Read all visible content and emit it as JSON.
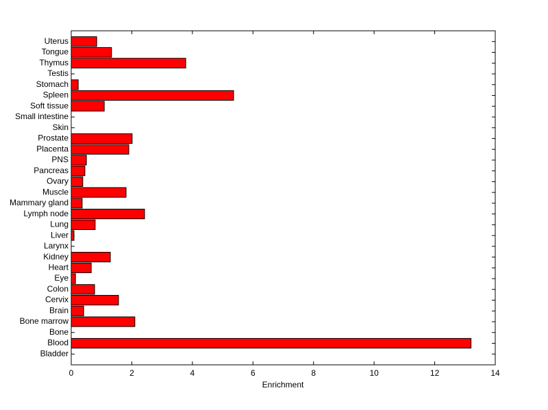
{
  "chart_data": {
    "type": "barh",
    "x_label": "Enrichment",
    "categories": [
      "Bladder",
      "Blood",
      "Bone",
      "Bone marrow",
      "Brain",
      "Cervix",
      "Colon",
      "Eye",
      "Heart",
      "Kidney",
      "Larynx",
      "Liver",
      "Lung",
      "Lymph node",
      "Mammary gland",
      "Muscle",
      "Ovary",
      "Pancreas",
      "PNS",
      "Placenta",
      "Prostate",
      "Skin",
      "Small intestine",
      "Soft tissue",
      "Spleen",
      "Stomach",
      "Testis",
      "Thymus",
      "Tongue",
      "Uterus"
    ],
    "values": [
      0,
      13.2,
      0,
      2.1,
      0.41,
      1.56,
      0.77,
      0.14,
      0.66,
      1.29,
      0,
      0.09,
      0.79,
      2.42,
      0.36,
      1.81,
      0.38,
      0.45,
      0.5,
      1.9,
      2.01,
      0,
      0,
      1.09,
      5.36,
      0.23,
      0,
      3.78,
      1.33,
      0.84
    ],
    "color": "#ff0000",
    "xlim": [
      0,
      14
    ],
    "xticks": [
      0,
      2,
      4,
      6,
      8,
      10,
      12,
      14
    ],
    "grid": false
  }
}
